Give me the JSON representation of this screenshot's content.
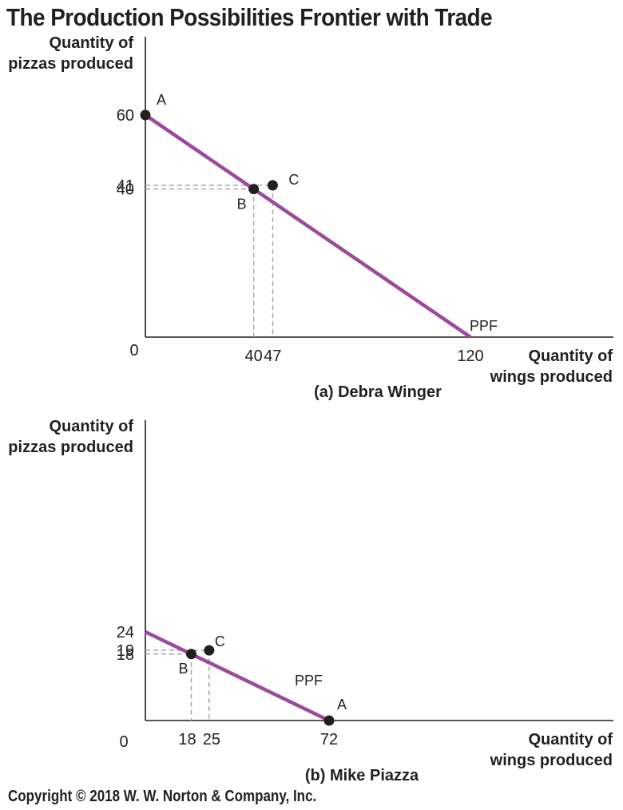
{
  "title": "The Production Possibilities Frontier with Trade",
  "copyright": "Copyright © 2018 W. W. Norton & Company, Inc.",
  "colors": {
    "ppf": "#9b4a9c",
    "axis": "#231f20",
    "guide": "#a7a9ac",
    "point": "#231f20"
  },
  "chart_data": [
    {
      "type": "line",
      "panel_title": "(a) Debra Winger",
      "ylabel": [
        "Quantity of",
        "pizzas produced"
      ],
      "xlabel": [
        "Quantity of",
        "wings produced"
      ],
      "origin_label": "0",
      "x_ticks": [
        "40",
        "47",
        "120"
      ],
      "y_ticks": [
        "60",
        "41",
        "40"
      ],
      "xlim": [
        0,
        120
      ],
      "ylim": [
        0,
        60
      ],
      "ppf_label": "PPF",
      "series": [
        {
          "name": "PPF",
          "x": [
            0,
            120
          ],
          "y": [
            60,
            0
          ]
        }
      ],
      "points": [
        {
          "label": "A",
          "x": 0,
          "y": 60
        },
        {
          "label": "B",
          "x": 40,
          "y": 40
        },
        {
          "label": "C",
          "x": 47,
          "y": 41
        }
      ]
    },
    {
      "type": "line",
      "panel_title": "(b) Mike Piazza",
      "ylabel": [
        "Quantity of",
        "pizzas produced"
      ],
      "xlabel": [
        "Quantity of",
        "wings produced"
      ],
      "origin_label": "0",
      "x_ticks": [
        "18",
        "25",
        "72"
      ],
      "y_ticks": [
        "24",
        "19",
        "18"
      ],
      "xlim": [
        0,
        72
      ],
      "ylim": [
        0,
        24
      ],
      "ppf_label": "PPF",
      "series": [
        {
          "name": "PPF",
          "x": [
            0,
            72
          ],
          "y": [
            24,
            0
          ]
        }
      ],
      "points": [
        {
          "label": "A",
          "x": 72,
          "y": 0
        },
        {
          "label": "B",
          "x": 18,
          "y": 18
        },
        {
          "label": "C",
          "x": 25,
          "y": 19
        }
      ]
    }
  ]
}
